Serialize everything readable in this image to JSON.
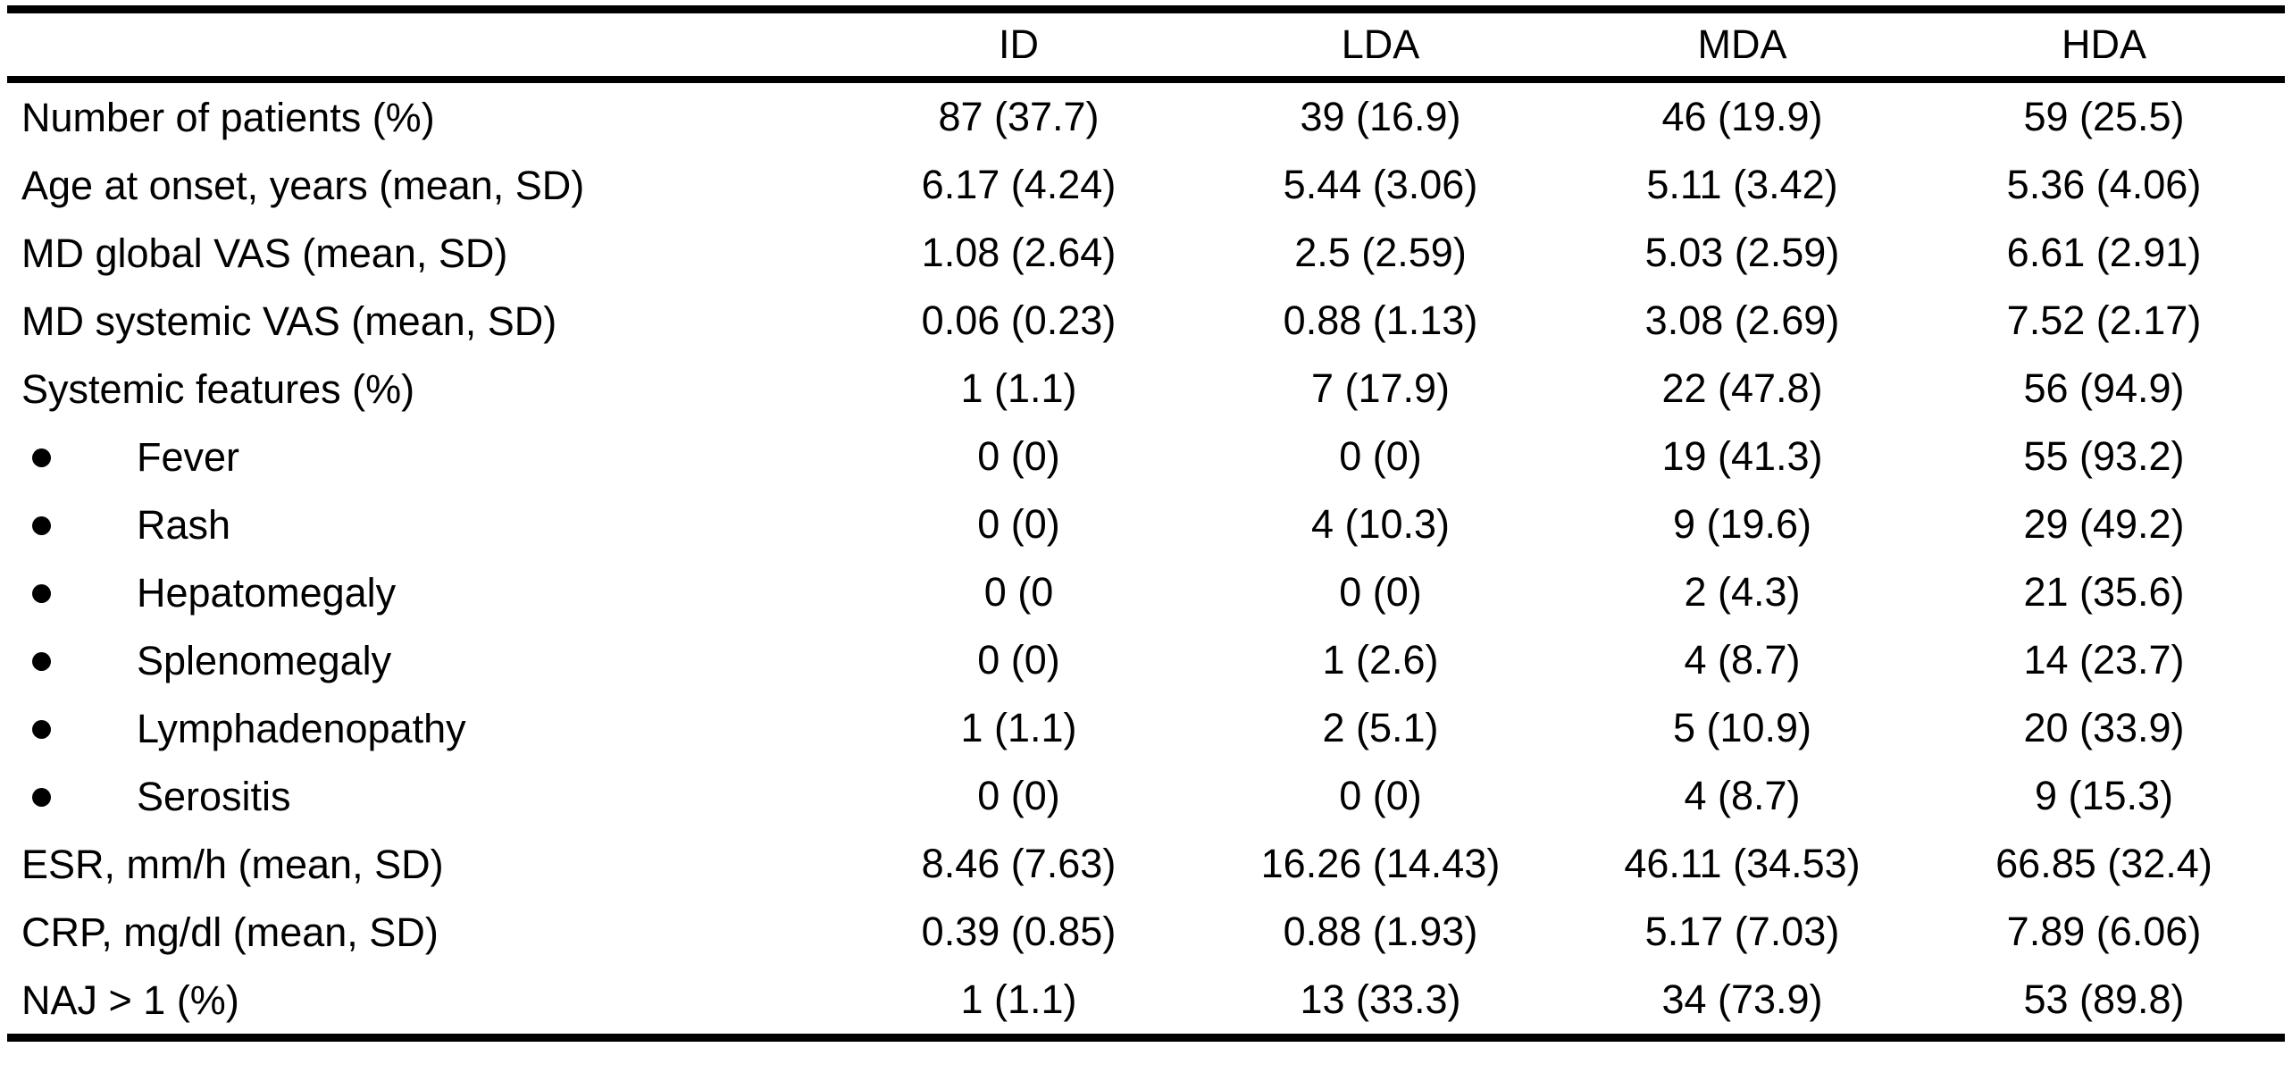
{
  "table": {
    "header": {
      "label": "",
      "columns": [
        "ID",
        "LDA",
        "MDA",
        "HDA"
      ]
    },
    "rows": [
      {
        "label": "Number of patients (%)",
        "bullet": false,
        "values": [
          "87 (37.7)",
          "39 (16.9)",
          "46 (19.9)",
          "59 (25.5)"
        ]
      },
      {
        "label": "Age at onset, years (mean, SD)",
        "bullet": false,
        "values": [
          "6.17 (4.24)",
          "5.44 (3.06)",
          "5.11 (3.42)",
          "5.36 (4.06)"
        ]
      },
      {
        "label": "MD global VAS (mean, SD)",
        "bullet": false,
        "values": [
          "1.08 (2.64)",
          "2.5 (2.59)",
          "5.03 (2.59)",
          "6.61 (2.91)"
        ]
      },
      {
        "label": "MD systemic VAS (mean, SD)",
        "bullet": false,
        "values": [
          "0.06 (0.23)",
          "0.88 (1.13)",
          "3.08 (2.69)",
          "7.52 (2.17)"
        ]
      },
      {
        "label": "Systemic features (%)",
        "bullet": false,
        "values": [
          "1 (1.1)",
          "7 (17.9)",
          "22 (47.8)",
          "56 (94.9)"
        ]
      },
      {
        "label": "Fever",
        "bullet": true,
        "values": [
          "0 (0)",
          "0 (0)",
          "19 (41.3)",
          "55 (93.2)"
        ]
      },
      {
        "label": "Rash",
        "bullet": true,
        "values": [
          "0 (0)",
          "4 (10.3)",
          "9 (19.6)",
          "29 (49.2)"
        ]
      },
      {
        "label": "Hepatomegaly",
        "bullet": true,
        "values": [
          "0 (0",
          "0 (0)",
          "2 (4.3)",
          "21 (35.6)"
        ]
      },
      {
        "label": "Splenomegaly",
        "bullet": true,
        "values": [
          "0 (0)",
          "1 (2.6)",
          "4 (8.7)",
          "14 (23.7)"
        ]
      },
      {
        "label": "Lymphadenopathy",
        "bullet": true,
        "values": [
          "1 (1.1)",
          "2 (5.1)",
          "5 (10.9)",
          "20 (33.9)"
        ]
      },
      {
        "label": "Serositis",
        "bullet": true,
        "values": [
          "0 (0)",
          "0 (0)",
          "4 (8.7)",
          "9 (15.3)"
        ]
      },
      {
        "label": "ESR, mm/h (mean, SD)",
        "bullet": false,
        "values": [
          "8.46 (7.63)",
          "16.26 (14.43)",
          "46.11 (34.53)",
          "66.85 (32.4)"
        ]
      },
      {
        "label": "CRP, mg/dl (mean, SD)",
        "bullet": false,
        "values": [
          "0.39 (0.85)",
          "0.88 (1.93)",
          "5.17 (7.03)",
          "7.89 (6.06)"
        ]
      },
      {
        "label": "NAJ > 1 (%)",
        "bullet": false,
        "values": [
          "1 (1.1)",
          "13 (33.3)",
          "34 (73.9)",
          "53 (89.8)"
        ]
      }
    ]
  }
}
